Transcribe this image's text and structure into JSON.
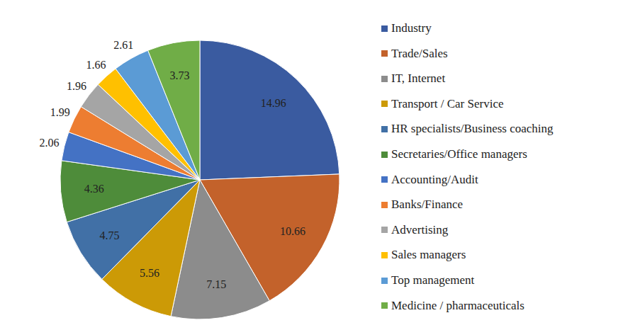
{
  "chart_data": {
    "type": "pie",
    "categories": [
      "Industry",
      "Trade/Sales",
      "IT, Internet",
      "Transport / Car Service",
      "HR specialists/Business coaching",
      "Secretaries/Office managers",
      "Accounting/Audit",
      "Banks/Finance",
      "Advertising",
      "Sales managers",
      "Top management",
      "Medicine / pharmaceuticals"
    ],
    "values": [
      14.96,
      10.66,
      7.15,
      5.56,
      4.75,
      4.36,
      2.06,
      1.99,
      1.96,
      1.66,
      2.61,
      3.73
    ],
    "colors": [
      "#3a5ba0",
      "#c3622b",
      "#8c8c8c",
      "#cc9a06",
      "#4170a6",
      "#4e8c3a",
      "#4472c4",
      "#ed7d31",
      "#a5a5a5",
      "#ffc000",
      "#5b9bd5",
      "#70ad47"
    ],
    "data_labels": true,
    "legend": "right"
  }
}
